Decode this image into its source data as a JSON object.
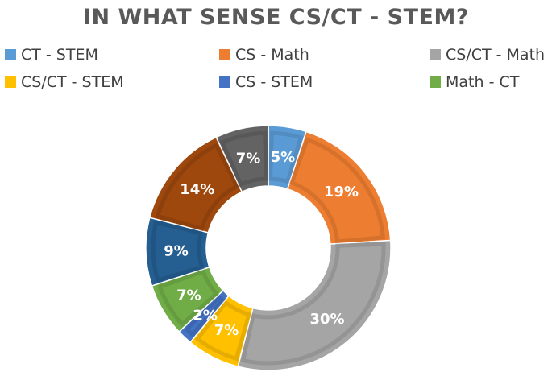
{
  "chart_data": {
    "type": "pie",
    "variant": "doughnut",
    "title": "IN WHAT SENSE CS/CT - STEM?",
    "legend_position": "top",
    "slices": [
      {
        "name": "CT - STEM",
        "value": 5,
        "label": "5%",
        "color": "#5b9bd5"
      },
      {
        "name": "CS - Math",
        "value": 19,
        "label": "19%",
        "color": "#ed7d31"
      },
      {
        "name": "CS/CT - Math",
        "value": 30,
        "label": "30%",
        "color": "#a5a5a5"
      },
      {
        "name": "CS/CT - STEM",
        "value": 7,
        "label": "7%",
        "color": "#ffc000"
      },
      {
        "name": "CS - STEM",
        "value": 2,
        "label": "2%",
        "color": "#4472c4"
      },
      {
        "name": "Math - CT",
        "value": 7,
        "label": "7%",
        "color": "#70ad47"
      },
      {
        "name": "",
        "value": 9,
        "label": "9%",
        "color": "#255e91"
      },
      {
        "name": "",
        "value": 14,
        "label": "14%",
        "color": "#9e480e"
      },
      {
        "name": "",
        "value": 7,
        "label": "7%",
        "color": "#636363"
      }
    ]
  }
}
